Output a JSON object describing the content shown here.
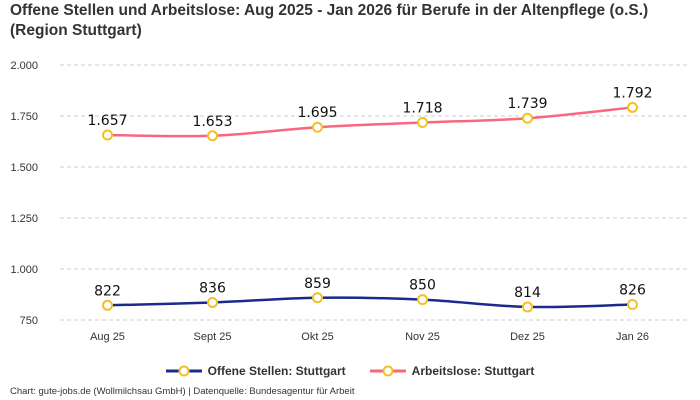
{
  "chart_data": {
    "type": "line",
    "title": "Offene Stellen und Arbeitslose: Aug 2025 - Jan 2026 für Berufe in der Altenpflege (o.S.) (Region Stuttgart)",
    "categories": [
      "Aug 25",
      "Sept 25",
      "Okt 25",
      "Nov 25",
      "Dez 25",
      "Jan 26"
    ],
    "yticks": [
      "750",
      "1.000",
      "1.250",
      "1.500",
      "1.750",
      "2.000"
    ],
    "ytick_values": [
      750,
      1000,
      1250,
      1500,
      1750,
      2000
    ],
    "ylim": [
      750,
      2000
    ],
    "grid": true,
    "legend_position": "bottom",
    "series": [
      {
        "name": "Offene Stellen: Stuttgart",
        "values": [
          822,
          836,
          859,
          850,
          814,
          826
        ],
        "labels": [
          "822",
          "836",
          "859",
          "850",
          "814",
          "826"
        ],
        "color": "#1b2a8c"
      },
      {
        "name": "Arbeitslose: Stuttgart",
        "values": [
          1657,
          1653,
          1695,
          1718,
          1739,
          1792
        ],
        "labels": [
          "1.657",
          "1.653",
          "1.695",
          "1.718",
          "1.739",
          "1.792"
        ],
        "color": "#f7687f"
      }
    ],
    "marker_color": "#f5c023"
  },
  "source": "Chart: gute-jobs.de (Wollmilchsau GmbH) | Datenquelle: Bundesagentur für Arbeit"
}
